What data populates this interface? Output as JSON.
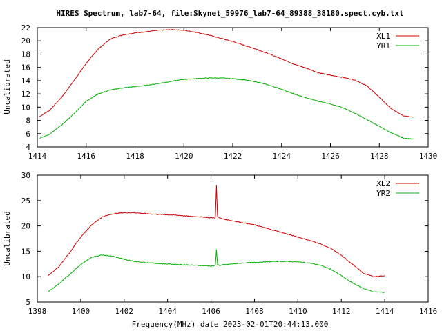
{
  "title": "HIRES Spectrum, lab7-64, file:Skynet_59976_lab7-64_89388_38180.spect.cyb.txt",
  "xlabel": "Frequency(MHz) date 2023-02-01T20:44:13.000",
  "colors": {
    "red": "#cc0000",
    "green": "#00b000"
  },
  "chart_data": [
    {
      "type": "line",
      "ylabel": "Uncalibrated",
      "xlim": [
        1414,
        1430
      ],
      "ylim": [
        4,
        22
      ],
      "xticks": [
        1414,
        1416,
        1418,
        1420,
        1422,
        1424,
        1426,
        1428,
        1430
      ],
      "yticks": [
        4,
        6,
        8,
        10,
        12,
        14,
        16,
        18,
        20,
        22
      ],
      "legend_position": "top-right",
      "series": [
        {
          "name": "XL1",
          "color": "#cc0000",
          "x": [
            1414.1,
            1414.5,
            1415.0,
            1415.5,
            1416.0,
            1416.5,
            1417.0,
            1417.5,
            1418.0,
            1418.5,
            1419.0,
            1419.5,
            1420.0,
            1420.5,
            1421.0,
            1421.5,
            1422.0,
            1422.5,
            1423.0,
            1423.5,
            1424.0,
            1424.5,
            1425.0,
            1425.5,
            1426.0,
            1426.5,
            1427.0,
            1427.5,
            1428.0,
            1428.5,
            1429.0,
            1429.4
          ],
          "y": [
            8.6,
            9.5,
            11.5,
            14.0,
            16.6,
            18.8,
            20.3,
            20.9,
            21.2,
            21.4,
            21.6,
            21.7,
            21.6,
            21.3,
            20.9,
            20.4,
            19.9,
            19.3,
            18.7,
            18.0,
            17.3,
            16.5,
            15.9,
            15.2,
            14.8,
            14.5,
            14.1,
            13.2,
            11.5,
            9.7,
            8.7,
            8.5
          ]
        },
        {
          "name": "YR1",
          "color": "#00b000",
          "x": [
            1414.1,
            1414.5,
            1415.0,
            1415.5,
            1416.0,
            1416.5,
            1417.0,
            1417.5,
            1418.0,
            1418.5,
            1419.0,
            1419.5,
            1420.0,
            1420.5,
            1421.0,
            1421.5,
            1422.0,
            1422.5,
            1423.0,
            1423.5,
            1424.0,
            1424.5,
            1425.0,
            1425.5,
            1426.0,
            1426.5,
            1427.0,
            1427.5,
            1428.0,
            1428.5,
            1429.0,
            1429.4
          ],
          "y": [
            5.3,
            5.9,
            7.3,
            9.0,
            10.9,
            12.0,
            12.6,
            12.9,
            13.1,
            13.3,
            13.6,
            13.9,
            14.2,
            14.3,
            14.4,
            14.4,
            14.3,
            14.1,
            13.8,
            13.3,
            12.7,
            12.0,
            11.4,
            10.9,
            10.5,
            9.9,
            9.1,
            8.1,
            7.1,
            6.1,
            5.3,
            5.2
          ]
        }
      ]
    },
    {
      "type": "line",
      "ylabel": "Uncalibrated",
      "xlim": [
        1398,
        1416
      ],
      "ylim": [
        5,
        30
      ],
      "xticks": [
        1398,
        1400,
        1402,
        1404,
        1406,
        1408,
        1410,
        1412,
        1414,
        1416
      ],
      "yticks": [
        5,
        10,
        15,
        20,
        25,
        30
      ],
      "legend_position": "top-right",
      "series": [
        {
          "name": "XL2",
          "color": "#cc0000",
          "x": [
            1398.5,
            1399.0,
            1399.5,
            1400.0,
            1400.5,
            1401.0,
            1401.5,
            1402.0,
            1402.5,
            1403.0,
            1403.5,
            1404.0,
            1404.5,
            1405.0,
            1405.5,
            1406.0,
            1406.2,
            1406.25,
            1406.3,
            1406.4,
            1406.5,
            1407.0,
            1407.5,
            1408.0,
            1408.5,
            1409.0,
            1409.5,
            1410.0,
            1410.5,
            1411.0,
            1411.5,
            1412.0,
            1412.5,
            1413.0,
            1413.5,
            1414.0
          ],
          "y": [
            10.2,
            12.0,
            14.8,
            17.8,
            20.2,
            21.8,
            22.4,
            22.6,
            22.6,
            22.4,
            22.3,
            22.2,
            22.1,
            21.9,
            21.8,
            21.6,
            21.6,
            28.0,
            21.8,
            21.6,
            21.4,
            21.0,
            20.6,
            20.2,
            19.6,
            19.0,
            18.4,
            17.8,
            17.2,
            16.5,
            15.6,
            14.2,
            12.5,
            10.7,
            10.0,
            10.2
          ]
        },
        {
          "name": "YR2",
          "color": "#00b000",
          "x": [
            1398.5,
            1399.0,
            1399.5,
            1400.0,
            1400.5,
            1401.0,
            1401.5,
            1402.0,
            1402.5,
            1403.0,
            1403.5,
            1404.0,
            1404.5,
            1405.0,
            1405.5,
            1406.0,
            1406.2,
            1406.25,
            1406.3,
            1406.4,
            1406.5,
            1407.0,
            1407.5,
            1408.0,
            1408.5,
            1409.0,
            1409.5,
            1410.0,
            1410.5,
            1411.0,
            1411.5,
            1412.0,
            1412.5,
            1413.0,
            1413.5,
            1414.0
          ],
          "y": [
            7.0,
            8.6,
            10.5,
            12.4,
            13.8,
            14.3,
            14.0,
            13.4,
            13.0,
            12.8,
            12.6,
            12.5,
            12.4,
            12.3,
            12.2,
            12.1,
            12.2,
            15.3,
            12.4,
            12.2,
            12.3,
            12.5,
            12.7,
            12.8,
            12.9,
            13.0,
            13.0,
            12.9,
            12.7,
            12.3,
            11.5,
            10.2,
            8.8,
            7.7,
            7.0,
            6.9
          ]
        }
      ]
    }
  ]
}
